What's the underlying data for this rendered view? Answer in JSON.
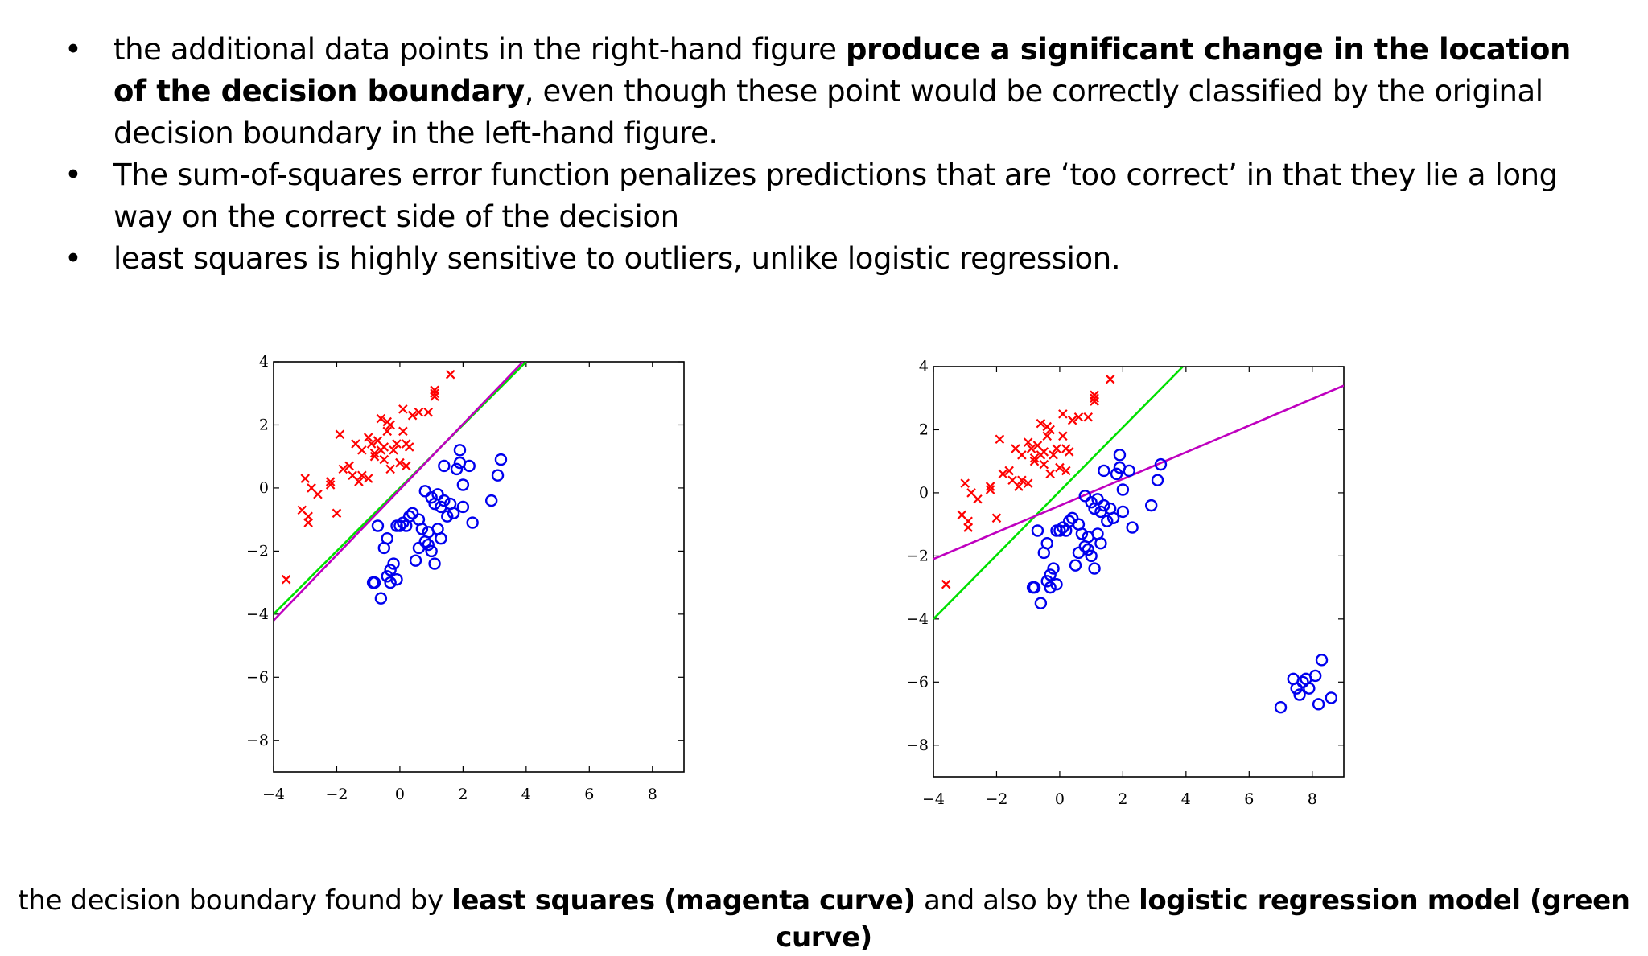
{
  "bullets": [
    {
      "parts": [
        {
          "text": "the additional data points in the right-hand figure ",
          "bold": false
        },
        {
          "text": "produce a significant change in the location of the decision boundary",
          "bold": true
        },
        {
          "text": ", even though these point would be correctly classified by the original decision boundary in the left-hand figure.",
          "bold": false
        }
      ]
    },
    {
      "parts": [
        {
          "text": "The sum-of-squares error function penalizes predictions that are ‘too correct’ in that they lie a long way on the correct side of the decision",
          "bold": false
        }
      ]
    },
    {
      "parts": [
        {
          "text": "least squares is highly sensitive to outliers, unlike logistic regression.",
          "bold": false
        }
      ]
    }
  ],
  "bullet_char": "•",
  "caption": {
    "parts": [
      {
        "text": "the decision boundary found by ",
        "bold": false
      },
      {
        "text": "least squares (magenta curve)",
        "bold": true
      },
      {
        "text": " and also by the ",
        "bold": false
      },
      {
        "text": "logistic regression model (green curve)",
        "bold": true
      }
    ]
  },
  "colors": {
    "cross": "#ff0000",
    "circle": "#0000ee",
    "least_squares": "#bf00bf",
    "logistic": "#00e000",
    "axis": "#000000"
  },
  "chart_data": [
    {
      "type": "scatter",
      "xlim": [
        -4,
        9
      ],
      "ylim": [
        -9,
        4
      ],
      "xticks": [
        -4,
        -2,
        0,
        2,
        4,
        6,
        8
      ],
      "yticks": [
        -8,
        -6,
        -4,
        -2,
        0,
        2,
        4
      ],
      "xtick_labels": [
        "−4",
        "−2",
        "0",
        "2",
        "4",
        "6",
        "8"
      ],
      "ytick_labels": [
        "−8",
        "−6",
        "−4",
        "−2",
        "0",
        "2",
        "4"
      ],
      "grid": false,
      "crosses": [
        [
          -3.6,
          -2.9
        ],
        [
          -3.1,
          -0.7
        ],
        [
          -2.9,
          -1.1
        ],
        [
          -2.9,
          -0.9
        ],
        [
          -3.0,
          0.3
        ],
        [
          -2.8,
          0.0
        ],
        [
          -2.6,
          -0.2
        ],
        [
          -2.2,
          0.1
        ],
        [
          -2.2,
          0.2
        ],
        [
          -2.0,
          -0.8
        ],
        [
          -1.9,
          1.7
        ],
        [
          -1.8,
          0.6
        ],
        [
          -1.6,
          0.7
        ],
        [
          -1.5,
          0.4
        ],
        [
          -1.4,
          1.4
        ],
        [
          -1.3,
          0.2
        ],
        [
          -1.2,
          1.2
        ],
        [
          -1.2,
          0.4
        ],
        [
          -1.0,
          1.6
        ],
        [
          -1.0,
          0.3
        ],
        [
          -0.9,
          1.4
        ],
        [
          -0.8,
          1.0
        ],
        [
          -0.8,
          1.1
        ],
        [
          -0.7,
          1.5
        ],
        [
          -0.6,
          2.2
        ],
        [
          -0.6,
          1.2
        ],
        [
          -0.5,
          1.3
        ],
        [
          -0.5,
          0.9
        ],
        [
          -0.4,
          2.1
        ],
        [
          -0.4,
          1.8
        ],
        [
          -0.3,
          0.6
        ],
        [
          -0.3,
          2.0
        ],
        [
          -0.2,
          1.2
        ],
        [
          -0.1,
          1.4
        ],
        [
          0.0,
          0.8
        ],
        [
          0.1,
          1.8
        ],
        [
          0.1,
          2.5
        ],
        [
          0.2,
          1.4
        ],
        [
          0.2,
          0.7
        ],
        [
          0.3,
          1.3
        ],
        [
          0.4,
          2.3
        ],
        [
          0.6,
          2.4
        ],
        [
          0.9,
          2.4
        ],
        [
          1.1,
          3.0
        ],
        [
          1.1,
          2.9
        ],
        [
          1.1,
          3.1
        ],
        [
          1.6,
          3.6
        ]
      ],
      "circles": [
        [
          -0.8,
          -3.0
        ],
        [
          -0.6,
          -3.5
        ],
        [
          -0.4,
          -2.8
        ],
        [
          -0.7,
          -1.2
        ],
        [
          -0.5,
          -1.9
        ],
        [
          -0.4,
          -1.6
        ],
        [
          -0.3,
          -2.6
        ],
        [
          -0.3,
          -3.0
        ],
        [
          -0.2,
          -2.4
        ],
        [
          -0.1,
          -2.9
        ],
        [
          -0.1,
          -1.2
        ],
        [
          0.0,
          -1.2
        ],
        [
          0.1,
          -1.1
        ],
        [
          0.2,
          -1.2
        ],
        [
          0.3,
          -0.9
        ],
        [
          0.4,
          -0.8
        ],
        [
          0.5,
          -2.3
        ],
        [
          0.6,
          -1.9
        ],
        [
          0.6,
          -1.0
        ],
        [
          0.7,
          -1.3
        ],
        [
          0.8,
          -1.7
        ],
        [
          0.8,
          -0.1
        ],
        [
          0.9,
          -1.4
        ],
        [
          0.9,
          -1.8
        ],
        [
          1.0,
          -2.0
        ],
        [
          1.0,
          -0.3
        ],
        [
          1.1,
          -2.4
        ],
        [
          1.1,
          -0.5
        ],
        [
          1.2,
          -1.3
        ],
        [
          1.2,
          -0.2
        ],
        [
          1.3,
          -1.6
        ],
        [
          1.3,
          -0.6
        ],
        [
          1.4,
          0.7
        ],
        [
          1.4,
          -0.4
        ],
        [
          1.5,
          -0.9
        ],
        [
          1.6,
          -0.5
        ],
        [
          1.7,
          -0.8
        ],
        [
          1.8,
          0.6
        ],
        [
          1.9,
          1.2
        ],
        [
          1.9,
          0.8
        ],
        [
          2.0,
          -0.6
        ],
        [
          2.0,
          0.1
        ],
        [
          2.2,
          0.7
        ],
        [
          2.3,
          -1.1
        ],
        [
          2.9,
          -0.4
        ],
        [
          3.1,
          0.4
        ],
        [
          3.2,
          0.9
        ],
        [
          -0.85,
          -3.0
        ]
      ],
      "lines": [
        {
          "color_key": "logistic",
          "x": [
            -4.0,
            4.0
          ],
          "y": [
            -4.0,
            4.0
          ]
        },
        {
          "color_key": "least_squares",
          "x": [
            -4.0,
            3.9
          ],
          "y": [
            -4.2,
            4.0
          ]
        }
      ]
    },
    {
      "type": "scatter",
      "xlim": [
        -4,
        9
      ],
      "ylim": [
        -9,
        4
      ],
      "xticks": [
        -4,
        -2,
        0,
        2,
        4,
        6,
        8
      ],
      "yticks": [
        -8,
        -6,
        -4,
        -2,
        0,
        2,
        4
      ],
      "xtick_labels": [
        "−4",
        "−2",
        "0",
        "2",
        "4",
        "6",
        "8"
      ],
      "ytick_labels": [
        "−8",
        "−6",
        "−4",
        "−2",
        "0",
        "2",
        "4"
      ],
      "grid": false,
      "crosses": [
        [
          -3.6,
          -2.9
        ],
        [
          -3.1,
          -0.7
        ],
        [
          -2.9,
          -1.1
        ],
        [
          -2.9,
          -0.9
        ],
        [
          -3.0,
          0.3
        ],
        [
          -2.8,
          0.0
        ],
        [
          -2.6,
          -0.2
        ],
        [
          -2.2,
          0.1
        ],
        [
          -2.2,
          0.2
        ],
        [
          -2.0,
          -0.8
        ],
        [
          -1.9,
          1.7
        ],
        [
          -1.8,
          0.6
        ],
        [
          -1.6,
          0.7
        ],
        [
          -1.5,
          0.4
        ],
        [
          -1.4,
          1.4
        ],
        [
          -1.3,
          0.2
        ],
        [
          -1.2,
          1.2
        ],
        [
          -1.2,
          0.4
        ],
        [
          -1.0,
          1.6
        ],
        [
          -1.0,
          0.3
        ],
        [
          -0.9,
          1.4
        ],
        [
          -0.8,
          1.0
        ],
        [
          -0.8,
          1.1
        ],
        [
          -0.7,
          1.5
        ],
        [
          -0.6,
          2.2
        ],
        [
          -0.6,
          1.2
        ],
        [
          -0.5,
          1.3
        ],
        [
          -0.5,
          0.9
        ],
        [
          -0.4,
          2.1
        ],
        [
          -0.4,
          1.8
        ],
        [
          -0.3,
          0.6
        ],
        [
          -0.3,
          2.0
        ],
        [
          -0.2,
          1.2
        ],
        [
          -0.1,
          1.4
        ],
        [
          0.0,
          0.8
        ],
        [
          0.1,
          1.8
        ],
        [
          0.1,
          2.5
        ],
        [
          0.2,
          1.4
        ],
        [
          0.2,
          0.7
        ],
        [
          0.3,
          1.3
        ],
        [
          0.4,
          2.3
        ],
        [
          0.6,
          2.4
        ],
        [
          0.9,
          2.4
        ],
        [
          1.1,
          3.0
        ],
        [
          1.1,
          2.9
        ],
        [
          1.1,
          3.1
        ],
        [
          1.6,
          3.6
        ]
      ],
      "circles": [
        [
          -0.8,
          -3.0
        ],
        [
          -0.6,
          -3.5
        ],
        [
          -0.4,
          -2.8
        ],
        [
          -0.7,
          -1.2
        ],
        [
          -0.5,
          -1.9
        ],
        [
          -0.4,
          -1.6
        ],
        [
          -0.3,
          -2.6
        ],
        [
          -0.3,
          -3.0
        ],
        [
          -0.2,
          -2.4
        ],
        [
          -0.1,
          -2.9
        ],
        [
          -0.1,
          -1.2
        ],
        [
          0.0,
          -1.2
        ],
        [
          0.1,
          -1.1
        ],
        [
          0.2,
          -1.2
        ],
        [
          0.3,
          -0.9
        ],
        [
          0.4,
          -0.8
        ],
        [
          0.5,
          -2.3
        ],
        [
          0.6,
          -1.9
        ],
        [
          0.6,
          -1.0
        ],
        [
          0.7,
          -1.3
        ],
        [
          0.8,
          -1.7
        ],
        [
          0.8,
          -0.1
        ],
        [
          0.9,
          -1.4
        ],
        [
          0.9,
          -1.8
        ],
        [
          1.0,
          -2.0
        ],
        [
          1.0,
          -0.3
        ],
        [
          1.1,
          -2.4
        ],
        [
          1.1,
          -0.5
        ],
        [
          1.2,
          -1.3
        ],
        [
          1.2,
          -0.2
        ],
        [
          1.3,
          -1.6
        ],
        [
          1.3,
          -0.6
        ],
        [
          1.4,
          0.7
        ],
        [
          1.4,
          -0.4
        ],
        [
          1.5,
          -0.9
        ],
        [
          1.6,
          -0.5
        ],
        [
          1.7,
          -0.8
        ],
        [
          1.8,
          0.6
        ],
        [
          1.9,
          1.2
        ],
        [
          1.9,
          0.8
        ],
        [
          2.0,
          -0.6
        ],
        [
          2.0,
          0.1
        ],
        [
          2.2,
          0.7
        ],
        [
          2.3,
          -1.1
        ],
        [
          2.9,
          -0.4
        ],
        [
          3.1,
          0.4
        ],
        [
          3.2,
          0.9
        ],
        [
          -0.85,
          -3.0
        ],
        [
          7.0,
          -6.8
        ],
        [
          7.4,
          -5.9
        ],
        [
          7.5,
          -6.2
        ],
        [
          7.6,
          -6.4
        ],
        [
          7.7,
          -6.0
        ],
        [
          7.8,
          -5.9
        ],
        [
          7.9,
          -6.2
        ],
        [
          8.1,
          -5.8
        ],
        [
          8.2,
          -6.7
        ],
        [
          8.3,
          -5.3
        ],
        [
          8.6,
          -6.5
        ]
      ],
      "lines": [
        {
          "color_key": "logistic",
          "x": [
            -4.0,
            3.9
          ],
          "y": [
            -4.0,
            4.0
          ]
        },
        {
          "color_key": "least_squares",
          "x": [
            -4.0,
            9.0
          ],
          "y": [
            -2.1,
            3.4
          ]
        }
      ]
    }
  ]
}
